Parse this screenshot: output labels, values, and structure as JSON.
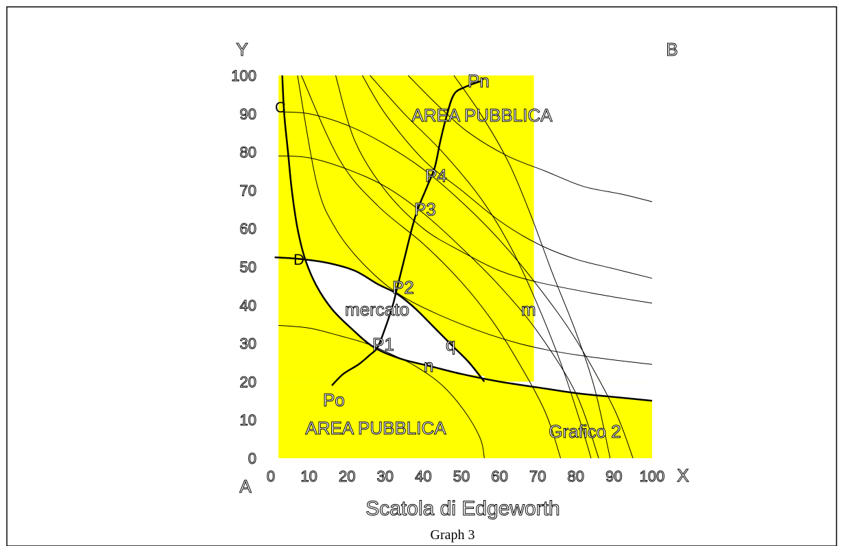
{
  "caption": "Graph 3",
  "chart_data": {
    "type": "line",
    "title": "Scatola di Edgeworth",
    "xlabel": "X",
    "ylabel": "Y",
    "xlim": [
      0,
      100
    ],
    "ylim": [
      0,
      100
    ],
    "x_ticks": [
      "0",
      "10",
      "20",
      "30",
      "40",
      "50",
      "60",
      "70",
      "80",
      "90",
      "100"
    ],
    "y_ticks": [
      "0",
      "10",
      "20",
      "30",
      "40",
      "50",
      "60",
      "70",
      "80",
      "90",
      "100"
    ],
    "corner_labels": {
      "origin_a": "A",
      "origin_b": "B"
    },
    "shaded_region": {
      "color": "#ffff00",
      "x": [
        2,
        100
      ],
      "y": [
        0,
        100
      ],
      "upper_block_x_max": 69,
      "upper_block_y_min": 20
    },
    "market_region_label": "mercato",
    "region_labels": [
      "AREA PUBBLICA",
      "AREA PUBBLICA"
    ],
    "graph_label": "Grafico 2",
    "point_labels": [
      "C",
      "D",
      "Pn",
      "P4",
      "P3",
      "P2",
      "P1",
      "Po",
      "m",
      "q",
      "n"
    ],
    "thick_curves": [
      {
        "id": "C-curve",
        "points": [
          [
            3,
            100
          ],
          [
            3.5,
            90
          ],
          [
            4.5,
            80
          ],
          [
            5.5,
            70
          ],
          [
            7,
            60
          ],
          [
            9,
            52
          ],
          [
            12,
            45
          ],
          [
            16,
            39
          ],
          [
            21,
            34
          ],
          [
            27,
            29
          ],
          [
            34,
            26
          ],
          [
            42,
            24
          ],
          [
            50,
            22
          ],
          [
            60,
            20
          ],
          [
            70,
            18.5
          ],
          [
            80,
            17
          ],
          [
            90,
            16
          ],
          [
            100,
            15
          ]
        ]
      },
      {
        "id": "D-curve",
        "points": [
          [
            1,
            52.5
          ],
          [
            8,
            52
          ],
          [
            15,
            51
          ],
          [
            22,
            49
          ],
          [
            28,
            45.5
          ],
          [
            33,
            43
          ],
          [
            38,
            39
          ],
          [
            43,
            34
          ],
          [
            48,
            29
          ],
          [
            52,
            25
          ],
          [
            56,
            20
          ]
        ]
      },
      {
        "id": "contract-curve",
        "points": [
          [
            16,
            19
          ],
          [
            19,
            22
          ],
          [
            23,
            24.5
          ],
          [
            26,
            27
          ],
          [
            28,
            29
          ],
          [
            30,
            34
          ],
          [
            32,
            40
          ],
          [
            33,
            44
          ],
          [
            35,
            52
          ],
          [
            37,
            60
          ],
          [
            38.5,
            65
          ],
          [
            41,
            71
          ],
          [
            43,
            76
          ],
          [
            44.5,
            83
          ],
          [
            46,
            89
          ],
          [
            48,
            95
          ],
          [
            51,
            97
          ],
          [
            55,
            98.5
          ]
        ]
      }
    ],
    "thin_curves": [
      {
        "points": [
          [
            2,
            34.7
          ],
          [
            10,
            34
          ],
          [
            18,
            32
          ],
          [
            25,
            30
          ],
          [
            32,
            27
          ],
          [
            38,
            24
          ],
          [
            45,
            19
          ],
          [
            51,
            12
          ],
          [
            55,
            5
          ],
          [
            56,
            0
          ]
        ]
      },
      {
        "points": [
          [
            2,
            79
          ],
          [
            10,
            78.5
          ],
          [
            20,
            75.5
          ],
          [
            30,
            71
          ],
          [
            40,
            64
          ],
          [
            50,
            55
          ],
          [
            60,
            45
          ],
          [
            70,
            33
          ],
          [
            80,
            17
          ],
          [
            86,
            0
          ]
        ]
      },
      {
        "points": [
          [
            2,
            90.5
          ],
          [
            10,
            90
          ],
          [
            20,
            87
          ],
          [
            30,
            82
          ],
          [
            40,
            75.5
          ],
          [
            50,
            67
          ],
          [
            60,
            57
          ],
          [
            70,
            45
          ],
          [
            80,
            31
          ],
          [
            90,
            13
          ],
          [
            95,
            0
          ]
        ]
      },
      {
        "points": [
          [
            7,
            100
          ],
          [
            12,
            72
          ],
          [
            17,
            60
          ],
          [
            25,
            50
          ],
          [
            35,
            42
          ],
          [
            50,
            35
          ],
          [
            65,
            30
          ],
          [
            80,
            27
          ],
          [
            100,
            24.5
          ]
        ]
      },
      {
        "points": [
          [
            17,
            100
          ],
          [
            22,
            83
          ],
          [
            30,
            70
          ],
          [
            40,
            60
          ],
          [
            50,
            54
          ],
          [
            60,
            49
          ],
          [
            70,
            46
          ],
          [
            85,
            43
          ],
          [
            100,
            40.5
          ]
        ]
      },
      {
        "points": [
          [
            24,
            100
          ],
          [
            30,
            90
          ],
          [
            40,
            78
          ],
          [
            50,
            70
          ],
          [
            60,
            62
          ],
          [
            70,
            56
          ],
          [
            80,
            52
          ],
          [
            90,
            49.5
          ],
          [
            100,
            47
          ]
        ]
      },
      {
        "points": [
          [
            36,
            100
          ],
          [
            44,
            92
          ],
          [
            52,
            85
          ],
          [
            62,
            79
          ],
          [
            72,
            75
          ],
          [
            82,
            71
          ],
          [
            92,
            69
          ],
          [
            100,
            67
          ]
        ]
      },
      {
        "points": [
          [
            8,
            100
          ],
          [
            18,
            78
          ],
          [
            28,
            66
          ],
          [
            40,
            56
          ],
          [
            50,
            46
          ],
          [
            58,
            36
          ],
          [
            65,
            25
          ],
          [
            72,
            12
          ],
          [
            76,
            0
          ]
        ]
      },
      {
        "points": [
          [
            26,
            100
          ],
          [
            35,
            90
          ],
          [
            45,
            80
          ],
          [
            55,
            68
          ],
          [
            63,
            55
          ],
          [
            70,
            40
          ],
          [
            76,
            25
          ],
          [
            81,
            10
          ],
          [
            84,
            0
          ]
        ]
      },
      {
        "points": [
          [
            48,
            100
          ],
          [
            55,
            90
          ],
          [
            62,
            78
          ],
          [
            68,
            64
          ],
          [
            74,
            48
          ],
          [
            80,
            33
          ],
          [
            85,
            18
          ],
          [
            89,
            0
          ]
        ]
      }
    ]
  }
}
